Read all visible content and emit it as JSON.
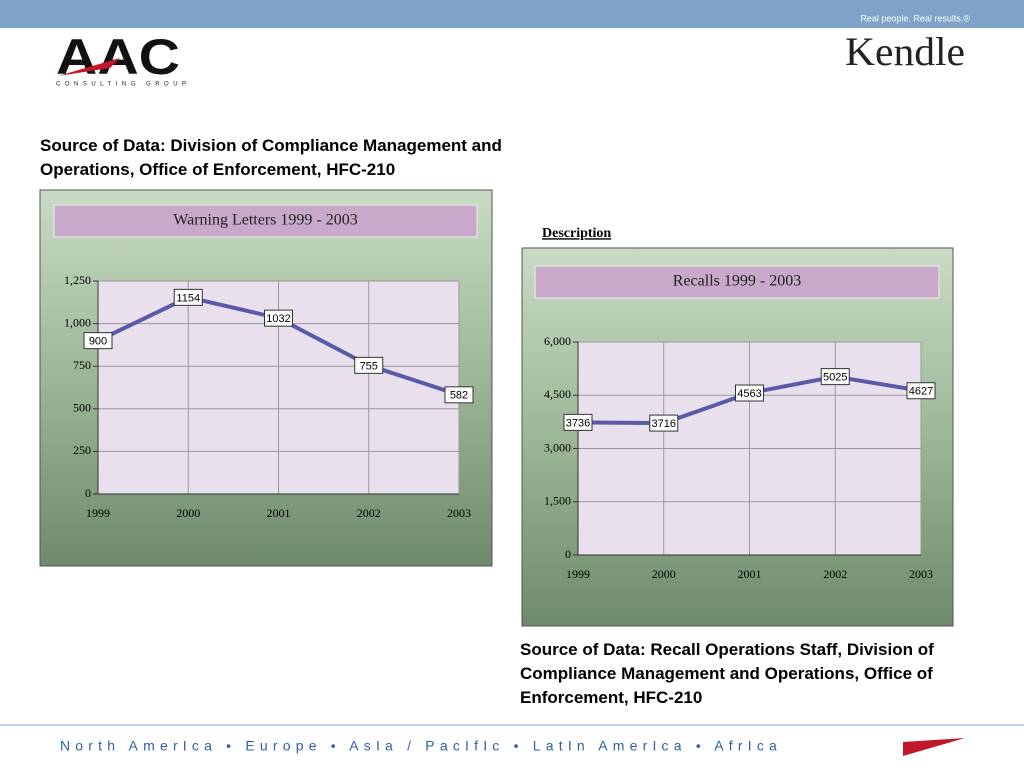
{
  "header": {
    "tagline": "Real people. Real results.®",
    "logo_left": "AAC",
    "logo_left_sub": "CONSULTING GROUP",
    "logo_right": "Kendle"
  },
  "source1": "Source of Data: Division of Compliance Management and Operations, Office of Enforcement, HFC-210",
  "description": "Description",
  "source2": "Source of Data: Recall Operations Staff, Division of Compliance Management and Operations, Office of Enforcement, HFC-210",
  "footer": "North AmerIca • Europe • AsIa / PacIfIc • LatIn AmerIca • AfrIca",
  "chart_data": [
    {
      "type": "line",
      "title": "Warning Letters 1999 - 2003",
      "categories": [
        "1999",
        "2000",
        "2001",
        "2002",
        "2003"
      ],
      "values": [
        900,
        1154,
        1032,
        755,
        582
      ],
      "color": "#5a5aa8",
      "ylim": [
        0,
        1250
      ],
      "yticks": [
        0,
        250,
        500,
        750,
        {
          "value": 1000,
          "label": "1,000"
        },
        {
          "value": 1250,
          "label": "1,250"
        }
      ],
      "grid": true
    },
    {
      "type": "line",
      "title": "Recalls 1999 - 2003",
      "categories": [
        "1999",
        "2000",
        "2001",
        "2002",
        "2003"
      ],
      "values": [
        3736,
        3716,
        4563,
        5025,
        4627
      ],
      "color": "#5a5aa8",
      "ylim": [
        0,
        6000
      ],
      "yticks": [
        0,
        {
          "value": 1500,
          "label": "1,500"
        },
        {
          "value": 3000,
          "label": "3,000"
        },
        {
          "value": 4500,
          "label": "4,500"
        },
        {
          "value": 6000,
          "label": "6,000"
        }
      ],
      "grid": true
    }
  ]
}
